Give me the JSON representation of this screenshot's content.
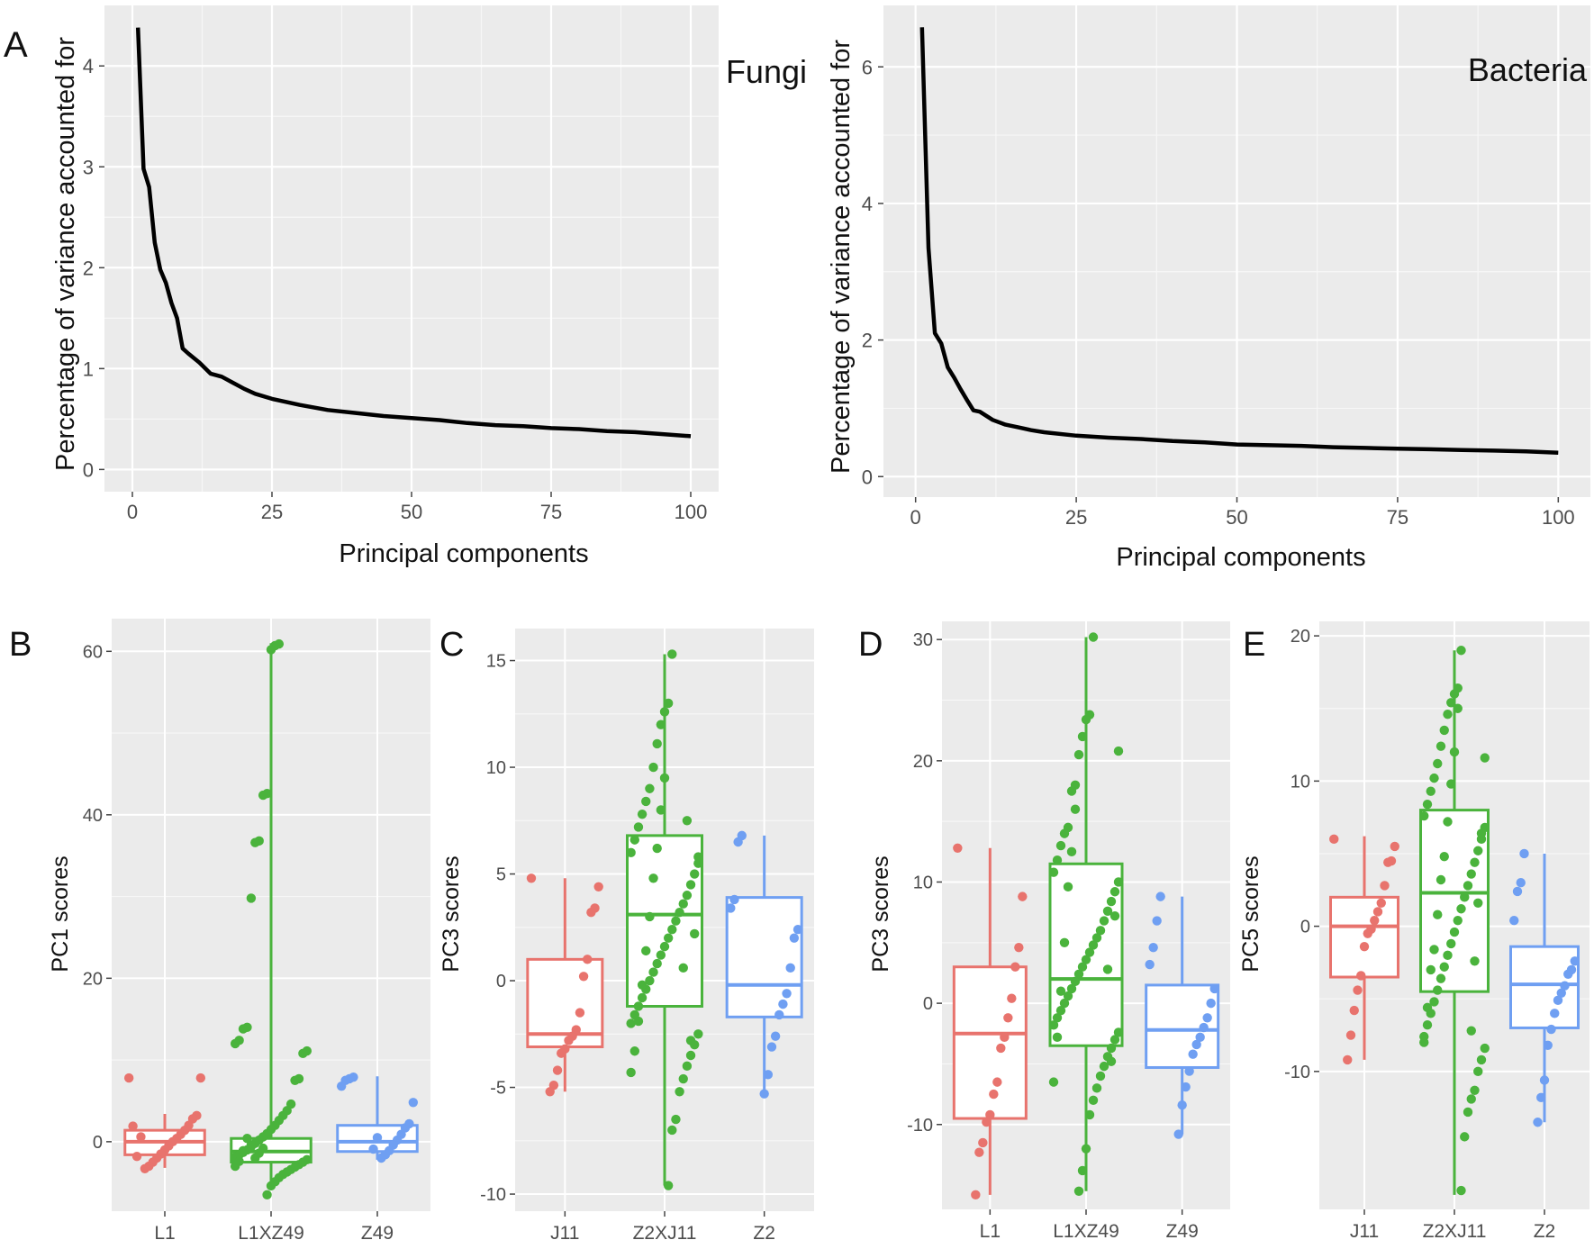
{
  "panels_top": [
    {
      "letter": "A",
      "label": "Fungi",
      "chart_data": {
        "type": "line",
        "xlabel": "Principal components",
        "ylabel": "Percentage of variance accounted for",
        "xlim": [
          -5,
          105
        ],
        "ylim": [
          -0.22,
          4.6
        ],
        "xticks": [
          0,
          25,
          50,
          75,
          100
        ],
        "yticks": [
          0,
          1,
          2,
          3,
          4
        ],
        "x": [
          1,
          2,
          3,
          4,
          5,
          6,
          7,
          8,
          9,
          10,
          12,
          14,
          16,
          18,
          20,
          22,
          25,
          30,
          35,
          40,
          45,
          50,
          55,
          60,
          65,
          70,
          75,
          80,
          85,
          90,
          95,
          100
        ],
        "values": [
          4.38,
          2.98,
          2.8,
          2.25,
          1.98,
          1.85,
          1.65,
          1.5,
          1.2,
          1.15,
          1.06,
          0.95,
          0.92,
          0.86,
          0.8,
          0.75,
          0.7,
          0.64,
          0.59,
          0.56,
          0.53,
          0.51,
          0.49,
          0.46,
          0.44,
          0.43,
          0.41,
          0.4,
          0.38,
          0.37,
          0.35,
          0.33
        ],
        "grid": true
      }
    },
    {
      "letter": "",
      "label": "Bacteria",
      "chart_data": {
        "type": "line",
        "xlabel": "Principal components",
        "ylabel": "Percentage of variance accounted for",
        "xlim": [
          -5,
          105
        ],
        "ylim": [
          -0.3,
          6.9
        ],
        "xticks": [
          0,
          25,
          50,
          75,
          100
        ],
        "yticks": [
          0,
          2,
          4,
          6
        ],
        "x": [
          1,
          2,
          3,
          4,
          5,
          6,
          7,
          8,
          9,
          10,
          12,
          14,
          16,
          18,
          20,
          25,
          30,
          35,
          40,
          45,
          50,
          55,
          60,
          65,
          70,
          75,
          80,
          85,
          90,
          95,
          100
        ],
        "values": [
          6.58,
          3.35,
          2.1,
          1.95,
          1.6,
          1.45,
          1.28,
          1.12,
          0.97,
          0.95,
          0.83,
          0.76,
          0.72,
          0.68,
          0.65,
          0.6,
          0.57,
          0.55,
          0.52,
          0.5,
          0.47,
          0.46,
          0.45,
          0.43,
          0.42,
          0.41,
          0.4,
          0.39,
          0.38,
          0.37,
          0.35
        ],
        "grid": true
      }
    }
  ],
  "panels_box": [
    {
      "letter": "B",
      "chart_data": {
        "type": "box",
        "ylabel": "PC1 scores",
        "ylim": [
          -8.5,
          64
        ],
        "yticks": [
          0,
          20,
          40,
          60
        ],
        "categories": [
          "L1",
          "L1XZ49",
          "Z49"
        ],
        "colors": [
          "#e8736d",
          "#4ab33c",
          "#6f9ff2"
        ],
        "boxes": [
          {
            "q1": -1.6,
            "median": 0.0,
            "q3": 1.4,
            "lower": -3.2,
            "upper": 3.4
          },
          {
            "q1": -2.5,
            "median": -1.2,
            "q3": 0.4,
            "lower": -5.5,
            "upper": 61
          },
          {
            "q1": -1.2,
            "median": 0.0,
            "q3": 2.0,
            "lower": -2.2,
            "upper": 8.0
          }
        ],
        "points": [
          [
            7.8,
            7.8,
            3.2,
            2.8,
            2.0,
            1.4,
            0.9,
            0.4,
            0.0,
            -0.5,
            -1.0,
            -1.5,
            -2.0,
            -2.5,
            -3.0,
            -3.3,
            0.6,
            -1.8,
            1.9
          ],
          [
            60.9,
            60.7,
            60.2,
            42.6,
            42.4,
            36.8,
            36.6,
            29.8,
            14.0,
            13.8,
            12.4,
            12.0,
            11.1,
            10.8,
            7.7,
            7.5,
            4.6,
            3.8,
            3.2,
            2.6,
            2.0,
            1.5,
            1.0,
            0.6,
            0.2,
            -0.2,
            -0.6,
            -1.0,
            -1.3,
            -1.6,
            -1.9,
            -2.2,
            -2.5,
            -2.8,
            -3.1,
            -3.4,
            -3.7,
            -4.0,
            -4.4,
            -4.9,
            -5.4,
            -6.5,
            -0.8,
            -1.4,
            -2.0,
            -0.4,
            0.4,
            -1.1,
            -2.4,
            -3.0
          ],
          [
            7.9,
            7.7,
            7.5,
            6.8,
            4.8,
            2.2,
            1.7,
            0.9,
            0.2,
            -0.4,
            -1.1,
            -1.6,
            -2.0,
            0.5,
            -0.9
          ]
        ]
      }
    },
    {
      "letter": "C",
      "chart_data": {
        "type": "box",
        "ylabel": "PC3 scores",
        "ylim": [
          -10.8,
          16.5
        ],
        "yticks": [
          -10,
          -5,
          0,
          5,
          10,
          15
        ],
        "categories": [
          "J11",
          "Z2XJ11",
          "Z2"
        ],
        "colors": [
          "#e8736d",
          "#4ab33c",
          "#6f9ff2"
        ],
        "boxes": [
          {
            "q1": -3.1,
            "median": -2.5,
            "q3": 1.0,
            "lower": -5.2,
            "upper": 4.8
          },
          {
            "q1": -1.2,
            "median": 3.1,
            "q3": 6.8,
            "lower": -9.6,
            "upper": 15.3
          },
          {
            "q1": -1.7,
            "median": -0.2,
            "q3": 3.9,
            "lower": -5.3,
            "upper": 6.8
          }
        ],
        "points": [
          [
            4.8,
            4.4,
            3.4,
            3.2,
            1.0,
            0.2,
            -1.5,
            -2.3,
            -2.6,
            -2.8,
            -3.2,
            -3.4,
            -4.2,
            -4.9,
            -5.2
          ],
          [
            15.3,
            13.0,
            12.6,
            12.0,
            11.1,
            10.0,
            9.0,
            8.4,
            7.8,
            7.2,
            6.6,
            6.0,
            5.5,
            5.0,
            4.5,
            4.0,
            3.6,
            3.2,
            2.8,
            2.4,
            2.0,
            1.6,
            1.2,
            0.8,
            0.4,
            0.0,
            -0.4,
            -0.8,
            -1.2,
            -1.6,
            -2.0,
            -2.5,
            -3.0,
            -3.5,
            -4.0,
            -4.6,
            -5.2,
            -6.5,
            -7.0,
            -9.6,
            9.5,
            8.0,
            6.2,
            4.8,
            3.0,
            1.4,
            -0.2,
            -1.9,
            -3.3,
            -4.3,
            5.8,
            2.2,
            -2.8,
            7.5,
            0.6
          ],
          [
            6.8,
            6.5,
            3.8,
            3.4,
            2.4,
            2.0,
            0.6,
            -0.6,
            -1.1,
            -1.6,
            -2.6,
            -3.1,
            -4.4,
            -5.3
          ]
        ]
      }
    },
    {
      "letter": "D",
      "chart_data": {
        "type": "box",
        "ylabel": "PC3 scores",
        "ylim": [
          -17,
          31.5
        ],
        "yticks": [
          -10,
          0,
          10,
          20,
          30
        ],
        "categories": [
          "L1",
          "L1XZ49",
          "Z49"
        ],
        "colors": [
          "#e8736d",
          "#4ab33c",
          "#6f9ff2"
        ],
        "boxes": [
          {
            "q1": -9.5,
            "median": -2.5,
            "q3": 3.0,
            "lower": -15.8,
            "upper": 12.8
          },
          {
            "q1": -3.5,
            "median": 2.0,
            "q3": 11.5,
            "lower": -15.5,
            "upper": 30.2
          },
          {
            "q1": -5.3,
            "median": -2.2,
            "q3": 1.5,
            "lower": -10.8,
            "upper": 8.8
          }
        ],
        "points": [
          [
            12.8,
            8.8,
            4.6,
            3.0,
            0.4,
            -1.2,
            -2.8,
            -3.7,
            -6.5,
            -7.5,
            -9.2,
            -9.8,
            -11.5,
            -12.3,
            -15.8
          ],
          [
            30.2,
            23.8,
            23.4,
            22.0,
            20.5,
            18.0,
            17.5,
            14.5,
            14.0,
            13.0,
            11.8,
            10.8,
            10.0,
            9.2,
            8.4,
            7.6,
            6.8,
            6.0,
            5.4,
            4.8,
            4.2,
            3.6,
            3.0,
            2.4,
            1.8,
            1.2,
            0.6,
            0.0,
            -0.6,
            -1.2,
            -1.8,
            -2.4,
            -3.0,
            -3.7,
            -4.4,
            -5.2,
            -6.0,
            -7.0,
            -8.0,
            -9.2,
            -12.0,
            -13.8,
            -15.5,
            16.0,
            12.5,
            9.6,
            5.0,
            1.0,
            -2.8,
            -6.5,
            20.8,
            7.2,
            -4.8,
            2.8
          ],
          [
            8.8,
            6.8,
            4.6,
            3.2,
            1.2,
            0.0,
            -1.2,
            -2.0,
            -2.8,
            -3.4,
            -4.2,
            -5.6,
            -6.9,
            -8.4,
            -10.8
          ]
        ]
      }
    },
    {
      "letter": "E",
      "chart_data": {
        "type": "box",
        "ylabel": "PC5 scores",
        "ylim": [
          -19.5,
          21
        ],
        "yticks": [
          -10,
          0,
          10,
          20
        ],
        "categories": [
          "J11",
          "Z2XJ11",
          "Z2"
        ],
        "colors": [
          "#e8736d",
          "#4ab33c",
          "#6f9ff2"
        ],
        "boxes": [
          {
            "q1": -3.5,
            "median": 0.0,
            "q3": 2.0,
            "lower": -9.2,
            "upper": 6.2
          },
          {
            "q1": -4.5,
            "median": 2.3,
            "q3": 8.0,
            "lower": -18.5,
            "upper": 19.0
          },
          {
            "q1": -7.0,
            "median": -4.0,
            "q3": -1.4,
            "lower": -13.5,
            "upper": 5.0
          }
        ],
        "points": [
          [
            6.0,
            5.5,
            4.5,
            4.4,
            2.8,
            1.6,
            1.0,
            0.4,
            -0.2,
            -0.5,
            -1.4,
            -3.4,
            -4.4,
            -5.8,
            -7.5,
            -9.2
          ],
          [
            19.0,
            16.4,
            16.0,
            15.4,
            14.6,
            13.5,
            12.4,
            11.2,
            10.2,
            9.3,
            8.4,
            7.6,
            6.8,
            6.0,
            5.2,
            4.4,
            3.6,
            2.8,
            2.0,
            1.2,
            0.4,
            -0.4,
            -1.2,
            -2.0,
            -2.8,
            -3.6,
            -4.4,
            -5.2,
            -6.0,
            -6.8,
            -7.6,
            -8.4,
            -9.2,
            -10.0,
            -11.3,
            -11.9,
            -12.8,
            -14.5,
            -18.2,
            15.0,
            12.0,
            9.8,
            7.2,
            4.8,
            3.2,
            0.8,
            -1.6,
            -3.0,
            -5.6,
            -8.0,
            11.6,
            6.4,
            1.6,
            -2.4,
            -7.2
          ],
          [
            5.0,
            3.0,
            2.4,
            0.4,
            -2.4,
            -3.0,
            -3.3,
            -4.1,
            -4.6,
            -5.1,
            -6.0,
            -7.1,
            -8.2,
            -10.6,
            -11.8,
            -13.5
          ]
        ]
      }
    }
  ]
}
